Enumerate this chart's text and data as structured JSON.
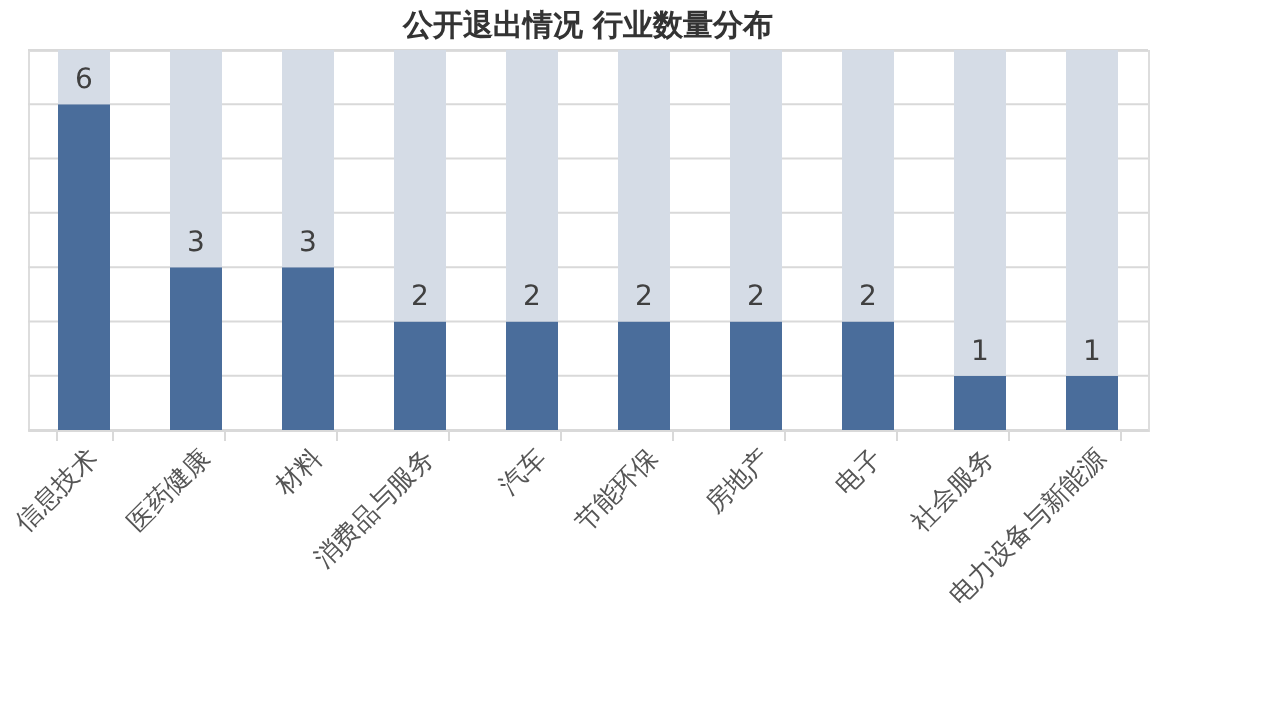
{
  "chart_data": {
    "type": "bar",
    "title": "公开退出情况 行业数量分布",
    "stacked": true,
    "categories": [
      "信息技术",
      "医药健康",
      "材料",
      "消费品与服务",
      "汽车",
      "节能环保",
      "房地产",
      "电子",
      "社会服务",
      "电力设备与新能源"
    ],
    "series": [
      {
        "color": "#4a6d9b",
        "values": [
          6,
          3,
          3,
          2,
          2,
          2,
          2,
          2,
          1,
          1
        ],
        "value_labels": [
          "6",
          "3",
          "3",
          "2",
          "2",
          "2",
          "2",
          "2",
          "1",
          "1"
        ]
      },
      {
        "color": "#d5dce6",
        "values": [
          1,
          4,
          4,
          5,
          5,
          5,
          5,
          5,
          6,
          6
        ]
      }
    ],
    "ylim": [
      0,
      7
    ],
    "yticks": [
      {
        "value": 0,
        "label": null
      },
      {
        "value": 1,
        "label": null
      },
      {
        "value": 2,
        "label": null
      },
      {
        "value": 3,
        "label": null
      },
      {
        "value": 4,
        "label": null
      },
      {
        "value": 5,
        "label": null
      },
      {
        "value": 6,
        "label": null
      },
      {
        "value": 7,
        "label": null
      }
    ],
    "grid": "y",
    "tick_labels": "x"
  }
}
